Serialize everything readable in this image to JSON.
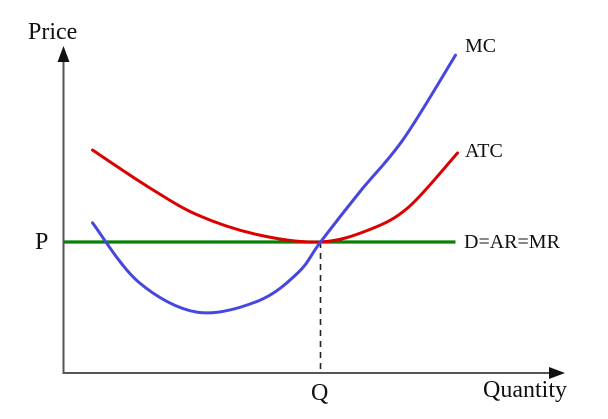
{
  "chart_data": {
    "type": "line",
    "title": "",
    "xlabel": "Quantity",
    "ylabel": "Price",
    "xlim": [
      0,
      10
    ],
    "ylim": [
      0,
      10
    ],
    "axes_numeric": false,
    "grid": false,
    "legend_position": "inline-right-of-curves",
    "series": [
      {
        "id": "mc",
        "name": "MC",
        "color": "#4646e0",
        "shape": "u-shaped marginal cost curve",
        "smooth": true,
        "points": [
          [
            0.58,
            4.62
          ],
          [
            1.5,
            2.8
          ],
          [
            2.68,
            1.87
          ],
          [
            3.9,
            2.22
          ],
          [
            4.7,
            3.1
          ],
          [
            5.14,
            4.03
          ],
          [
            5.94,
            5.6
          ],
          [
            6.8,
            7.2
          ],
          [
            7.84,
            9.78
          ]
        ]
      },
      {
        "id": "atc",
        "name": "ATC",
        "color": "#dd0000",
        "shape": "u-shaped average total cost curve tangent to demand line at its minimum",
        "smooth": true,
        "points": [
          [
            0.58,
            6.86
          ],
          [
            1.7,
            5.72
          ],
          [
            2.7,
            4.85
          ],
          [
            3.9,
            4.25
          ],
          [
            5.14,
            4.03
          ],
          [
            6.1,
            4.4
          ],
          [
            6.9,
            5.1
          ],
          [
            7.88,
            6.77
          ]
        ]
      },
      {
        "id": "demand",
        "name": "D=AR=MR",
        "color": "#088008",
        "shape": "horizontal demand line at price P",
        "smooth": false,
        "points": [
          [
            0.02,
            4.03
          ],
          [
            7.84,
            4.03
          ]
        ]
      }
    ],
    "annotations": {
      "P": {
        "label": "P",
        "axis": "y",
        "value": 4.03
      },
      "Q": {
        "label": "Q",
        "axis": "x",
        "value": 5.14
      },
      "equilibrium_point": [
        5.14,
        4.03
      ],
      "dashed_line": {
        "from": [
          5.14,
          4.03
        ],
        "to": [
          5.14,
          0
        ]
      }
    }
  },
  "colors": {
    "background": "#ffffff",
    "axis": "#555555",
    "arrowhead": "#111111",
    "dashed": "#222222",
    "text": "#111111"
  }
}
